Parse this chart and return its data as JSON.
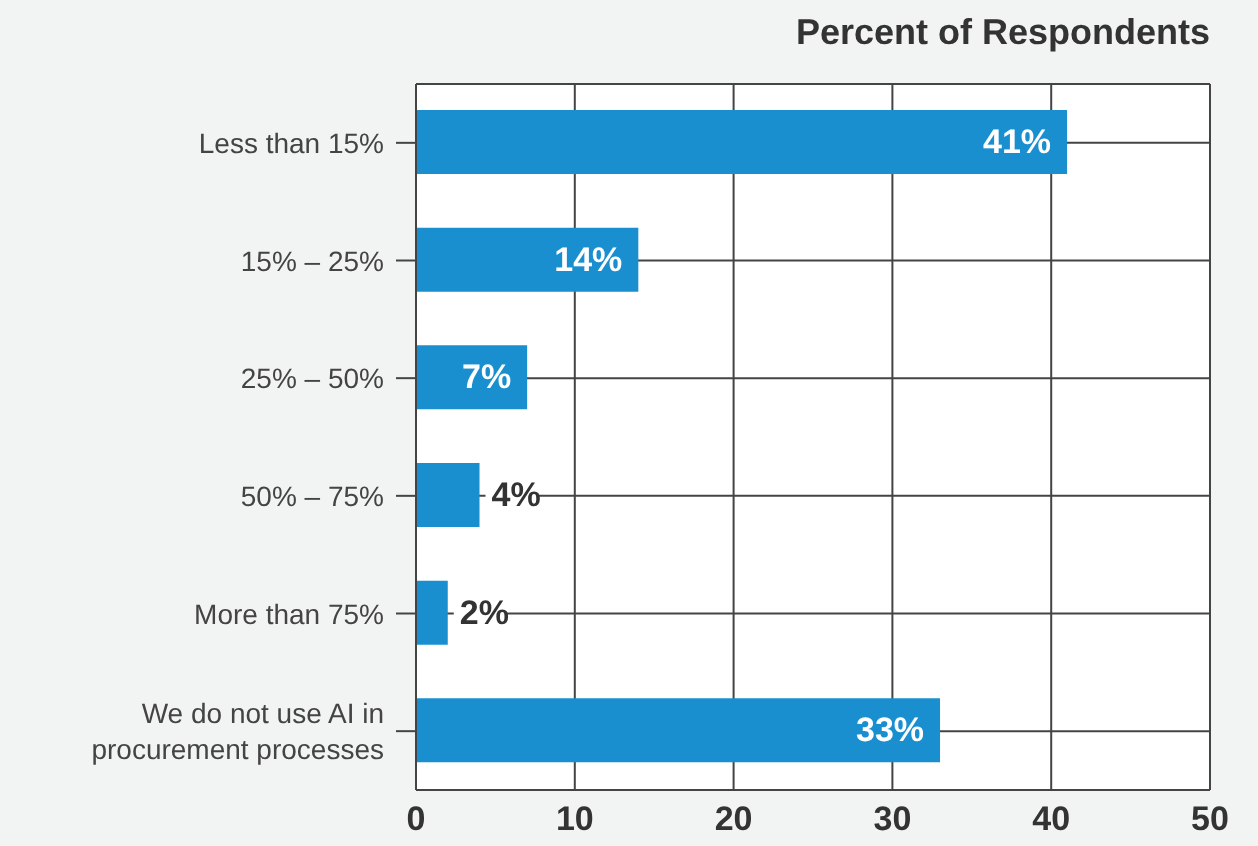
{
  "chart_data": {
    "type": "bar",
    "orientation": "horizontal",
    "title": "Percent of Respondents",
    "categories": [
      "Less than 15%",
      "15% – 25%",
      "25% – 50%",
      "50% – 75%",
      "More than 75%",
      "We do not use AI in procurement processes"
    ],
    "values": [
      41,
      14,
      7,
      4,
      2,
      33
    ],
    "value_labels": [
      "41%",
      "14%",
      "7%",
      "4%",
      "2%",
      "33%"
    ],
    "color": "#1a8fd0",
    "xlim": [
      0,
      50
    ],
    "xticks": [
      0,
      10,
      20,
      30,
      40,
      50
    ],
    "grid": true
  }
}
